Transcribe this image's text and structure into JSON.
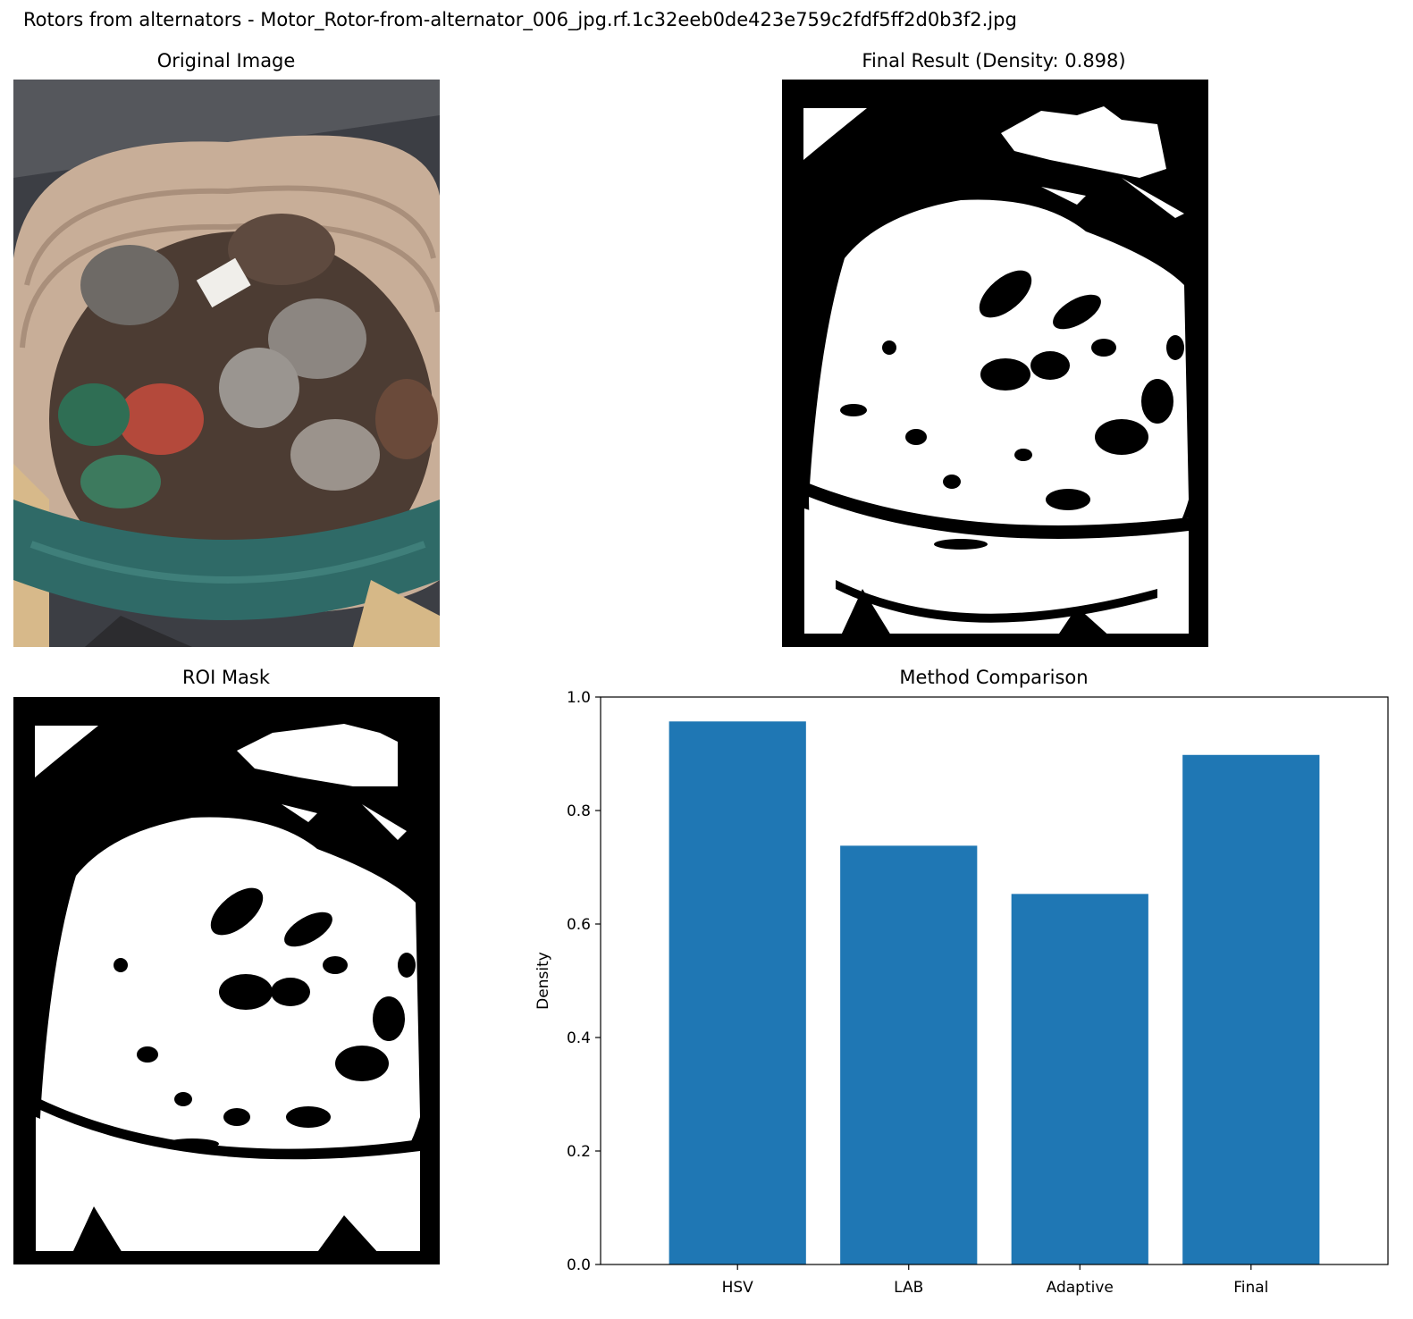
{
  "figure": {
    "suptitle": "Rotors from alternators - Motor_Rotor-from-alternator_006_jpg.rf.1c32eeb0de423e759c2fdf5ff2d0b3f2.jpg"
  },
  "panels": {
    "original": {
      "title": "Original Image"
    },
    "final": {
      "title": "Final Result (Density: 0.898)"
    },
    "roi": {
      "title": "ROI Mask"
    },
    "comparison": {
      "title": "Method Comparison"
    }
  },
  "chart_data": {
    "type": "bar",
    "title": "Method Comparison",
    "categories": [
      "HSV",
      "LAB",
      "Adaptive",
      "Final"
    ],
    "values": [
      0.957,
      0.738,
      0.653,
      0.898
    ],
    "xlabel": "",
    "ylabel": "Density",
    "ylim": [
      0.0,
      1.0
    ],
    "yticks": [
      "0.0",
      "0.2",
      "0.4",
      "0.6",
      "0.8",
      "1.0"
    ],
    "bar_color": "#1f77b4",
    "grid": false
  }
}
